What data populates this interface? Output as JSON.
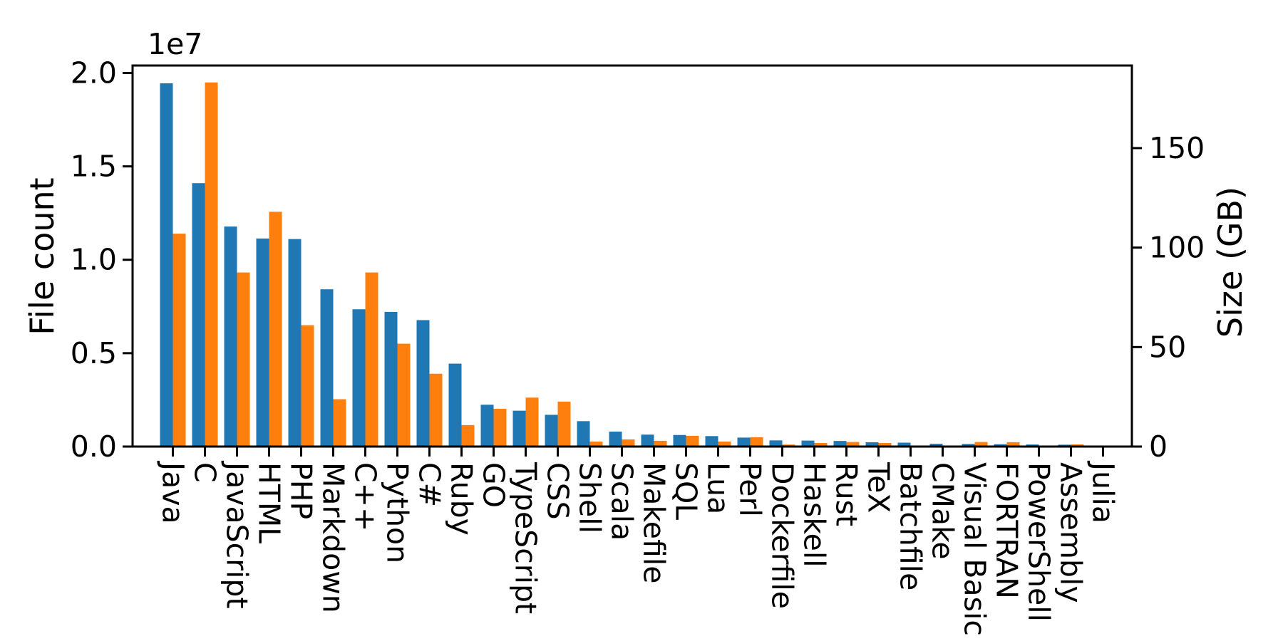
{
  "figure": {
    "background_color": "#ffffff",
    "spine_color": "#000000"
  },
  "chart_data": {
    "type": "bar",
    "subtype": "dual-axis-grouped",
    "grid": false,
    "legend": "none",
    "categories": [
      "Java",
      "C",
      "JavaScript",
      "HTML",
      "PHP",
      "Markdown",
      "C++",
      "Python",
      "C#",
      "Ruby",
      "GO",
      "TypeScript",
      "CSS",
      "Shell",
      "Scala",
      "Makefile",
      "SQL",
      "Lua",
      "Perl",
      "Dockerfile",
      "Haskell",
      "Rust",
      "TeX",
      "Batchfile",
      "CMake",
      "Visual Basic",
      "FORTRAN",
      "PowerShell",
      "Assembly",
      "Julia"
    ],
    "series": [
      {
        "name": "File count",
        "axis": "left",
        "color": "#1f77b4",
        "values": [
          19450000,
          14100000,
          11780000,
          11140000,
          11110000,
          8420000,
          7350000,
          7210000,
          6770000,
          4440000,
          2240000,
          1920000,
          1700000,
          1360000,
          800000,
          640000,
          620000,
          560000,
          480000,
          330000,
          320000,
          300000,
          230000,
          210000,
          150000,
          140000,
          125000,
          110000,
          100000,
          35000
        ]
      },
      {
        "name": "Size (GB)",
        "axis": "right",
        "color": "#ff7f0e",
        "values": [
          107,
          183,
          87.5,
          118,
          61,
          23.8,
          87.5,
          51.7,
          36.6,
          10.8,
          19,
          24.6,
          22.6,
          2.5,
          3.6,
          2.9,
          5.4,
          2.5,
          4.7,
          1.0,
          1.8,
          2.3,
          1.8,
          0.3,
          0.25,
          2.3,
          2.2,
          0.3,
          1.1,
          0.2
        ]
      }
    ],
    "left_axis": {
      "label": "File count",
      "color": "#1f77b4",
      "scale_label": "1e7",
      "tick_labels": [
        "0.0",
        "0.5",
        "1.0",
        "1.5",
        "2.0"
      ],
      "tick_values": [
        0,
        5000000,
        10000000,
        15000000,
        20000000
      ],
      "max": 20400000
    },
    "right_axis": {
      "label": "Size (GB)",
      "color": "#ff7f0e",
      "tick_labels": [
        "0",
        "50",
        "100",
        "150"
      ],
      "tick_values": [
        0,
        50,
        100,
        150
      ],
      "max": 191.5
    }
  }
}
